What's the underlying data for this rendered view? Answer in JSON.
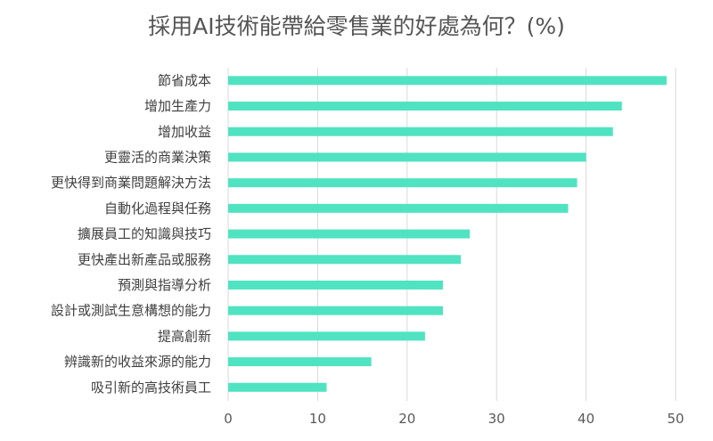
{
  "chart_data": {
    "type": "bar",
    "orientation": "horizontal",
    "title": "採用AI技術能帶給零售業的好處為何？(%)",
    "categories": [
      "節省成本",
      "增加生產力",
      "增加收益",
      "更靈活的商業決策",
      "更快得到商業問題解決方法",
      "自動化過程與任務",
      "擴展員工的知識與技巧",
      "更快產出新產品或服務",
      "預測與指導分析",
      "設計或測試生意構想的能力",
      "提高創新",
      "辨識新的收益來源的能力",
      "吸引新的高技術員工"
    ],
    "values": [
      49,
      44,
      43,
      40,
      39,
      38,
      27,
      26,
      24,
      24,
      22,
      16,
      11
    ],
    "xlim": [
      0,
      50
    ],
    "xticks": [
      0,
      10,
      20,
      30,
      40,
      50
    ],
    "grid": "vertical",
    "bar_color": "#4FE3C1"
  }
}
